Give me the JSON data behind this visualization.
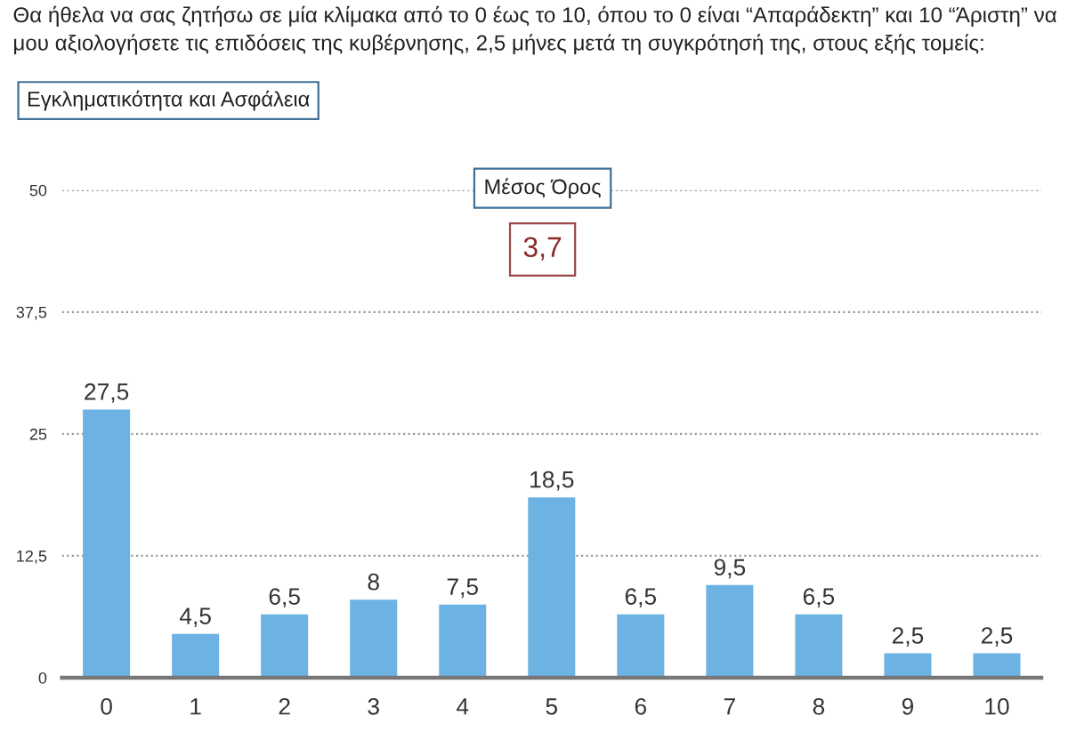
{
  "chart_data": {
    "type": "bar",
    "title": "Θα ήθελα να σας ζητήσω σε μία κλίμακα από το 0 έως το 10, όπου το 0 είναι “Απαράδεκτη” και 10 “Άριστη” να μου αξιολογήσετε τις επιδόσεις της κυβέρνησης, 2,5 μήνες μετά τη συγκρότησή της, στους εξής τομείς:",
    "subtitle": "Εγκληματικότητα και Ασφάλεια",
    "annotations": [
      "Μέσος Όρος",
      "3,7"
    ],
    "categories": [
      "0",
      "1",
      "2",
      "3",
      "4",
      "5",
      "6",
      "7",
      "8",
      "9",
      "10"
    ],
    "values": [
      27.5,
      4.5,
      6.5,
      8,
      7.5,
      18.5,
      6.5,
      9.5,
      6.5,
      2.5,
      2.5
    ],
    "value_labels": [
      "27,5",
      "4,5",
      "6,5",
      "8",
      "7,5",
      "18,5",
      "6,5",
      "9,5",
      "6,5",
      "2,5",
      "2,5"
    ],
    "color": "#6cb2e2",
    "ylim": [
      0,
      50
    ],
    "yticks": [
      0,
      {
        "value": 12.5,
        "label": "12,5"
      },
      25,
      {
        "value": 37.5,
        "label": "37,5"
      },
      50
    ],
    "grid": "y"
  }
}
